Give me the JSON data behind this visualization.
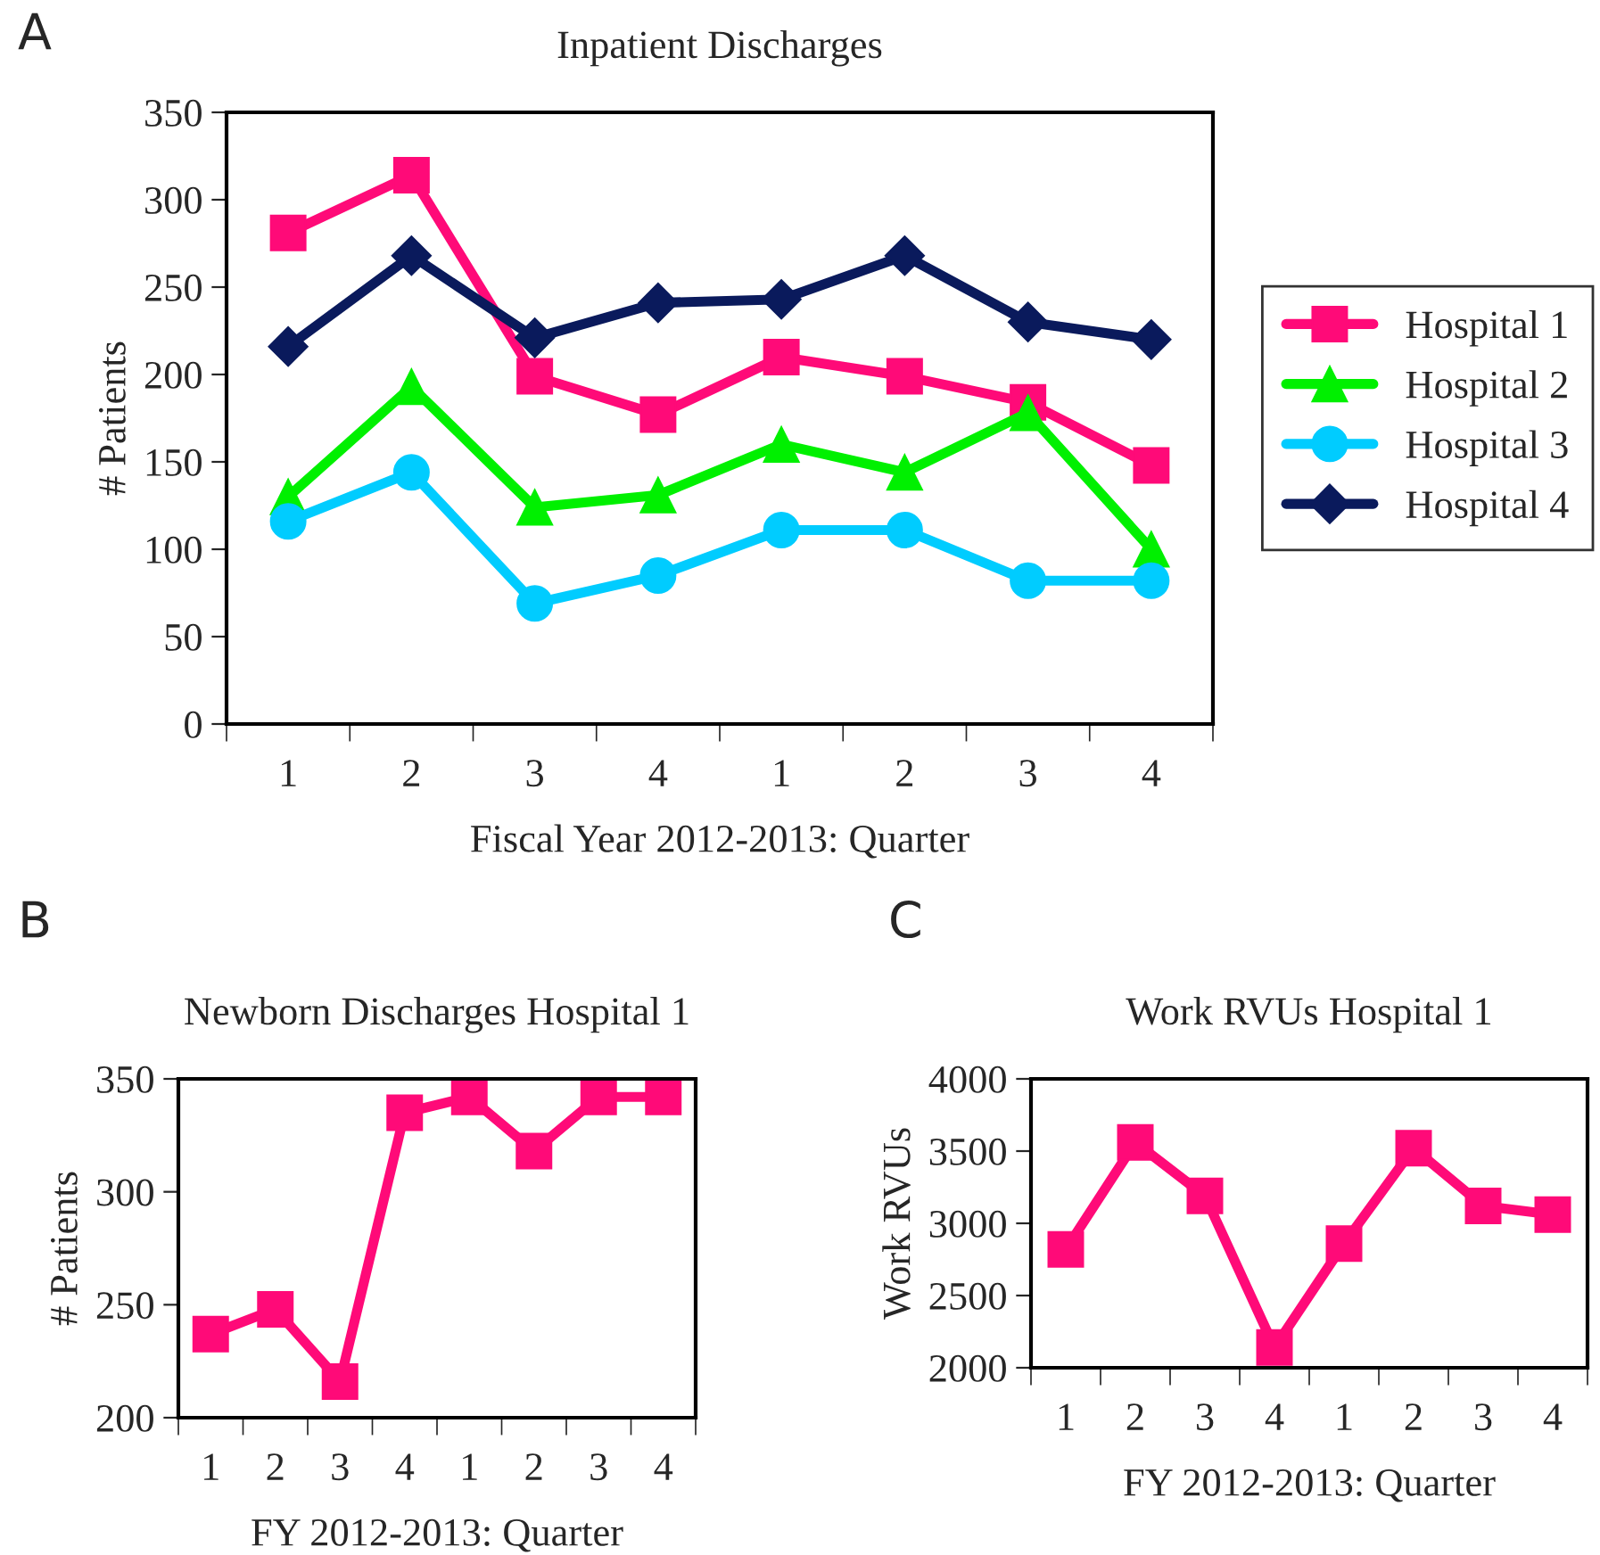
{
  "chart_data": [
    {
      "type": "line",
      "title": "Inpatient Discharges",
      "xlabel": "Fiscal Year 2012-2013: Quarter",
      "ylabel": "# Patients",
      "categories": [
        "1",
        "2",
        "3",
        "4",
        "1",
        "2",
        "3",
        "4"
      ],
      "ylim": [
        0,
        350
      ],
      "yticks": [
        0,
        50,
        100,
        150,
        200,
        250,
        300,
        350
      ],
      "legend": "right",
      "annotations": [
        "A"
      ],
      "series": [
        {
          "name": "Hospital 1",
          "color": "#ff0a78",
          "marker": "square",
          "values": [
            281,
            314,
            199,
            177,
            210,
            199,
            184,
            148
          ]
        },
        {
          "name": "Hospital 2",
          "color": "#00f000",
          "marker": "triangle",
          "values": [
            130,
            193,
            124,
            131,
            160,
            144,
            178,
            100
          ]
        },
        {
          "name": "Hospital 3",
          "color": "#00ccff",
          "marker": "circle",
          "values": [
            116,
            144,
            69,
            85,
            111,
            111,
            82,
            82
          ]
        },
        {
          "name": "Hospital 4",
          "color": "#0a1a5c",
          "marker": "diamond",
          "values": [
            216,
            268,
            221,
            241,
            243,
            268,
            230,
            220
          ]
        }
      ]
    },
    {
      "type": "line",
      "title": "Newborn Discharges Hospital 1",
      "xlabel": "FY 2012-2013: Quarter",
      "ylabel": "# Patients",
      "categories": [
        "1",
        "2",
        "3",
        "4",
        "1",
        "2",
        "3",
        "4"
      ],
      "ylim": [
        200,
        350
      ],
      "yticks": [
        200,
        250,
        300,
        350
      ],
      "marker": "square",
      "annotations": [
        "B"
      ],
      "series": [
        {
          "color": "#ff0a78",
          "values": [
            237,
            248,
            216,
            335,
            342,
            318,
            342,
            342
          ]
        }
      ]
    },
    {
      "type": "line",
      "title": "Work RVUs Hospital 1",
      "xlabel": "FY 2012-2013: Quarter",
      "ylabel": "Work RVUs",
      "categories": [
        "1",
        "2",
        "3",
        "4",
        "1",
        "2",
        "3",
        "4"
      ],
      "ylim": [
        2000,
        4000
      ],
      "yticks": [
        2000,
        2500,
        3000,
        3500,
        4000
      ],
      "marker": "square",
      "annotations": [
        "C"
      ],
      "series": [
        {
          "color": "#ff0a78",
          "values": [
            2820,
            3560,
            3190,
            2140,
            2860,
            3520,
            3120,
            3060
          ]
        }
      ]
    }
  ]
}
